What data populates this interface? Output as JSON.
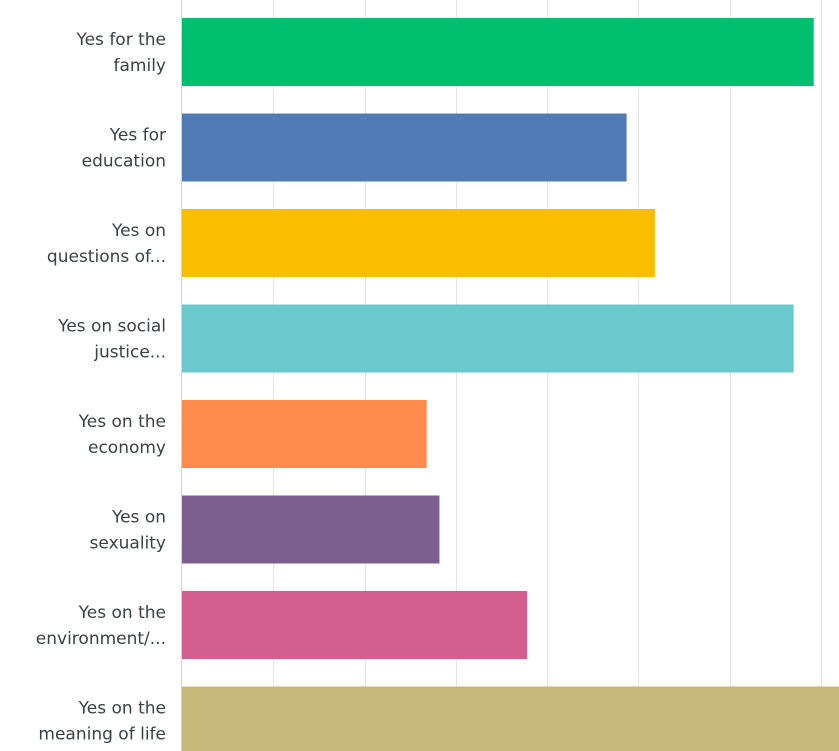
{
  "chart_data": {
    "type": "bar",
    "orientation": "horizontal",
    "categories": [
      [
        "Yes for the",
        "family"
      ],
      [
        "Yes for",
        "education"
      ],
      [
        "Yes on",
        "questions of..."
      ],
      [
        "Yes on social",
        "justice..."
      ],
      [
        "Yes on the",
        "economy"
      ],
      [
        "Yes on",
        "sexuality"
      ],
      [
        "Yes on the",
        "environment/..."
      ],
      [
        "Yes on the",
        "meaning of life"
      ]
    ],
    "values": [
      69.2,
      48.7,
      51.8,
      67.0,
      26.8,
      28.2,
      37.8,
      72.0
    ],
    "colors": [
      "#00bf6f",
      "#507cb6",
      "#f9be00",
      "#6bc8cd",
      "#ff8b4f",
      "#7d5e90",
      "#d25f90",
      "#c7b879"
    ],
    "xlim": [
      0,
      70
    ],
    "grid": true,
    "gridline_color": "#e3e6e8",
    "axis_color": "#cfd4d6",
    "label_color": "#3a4246"
  }
}
